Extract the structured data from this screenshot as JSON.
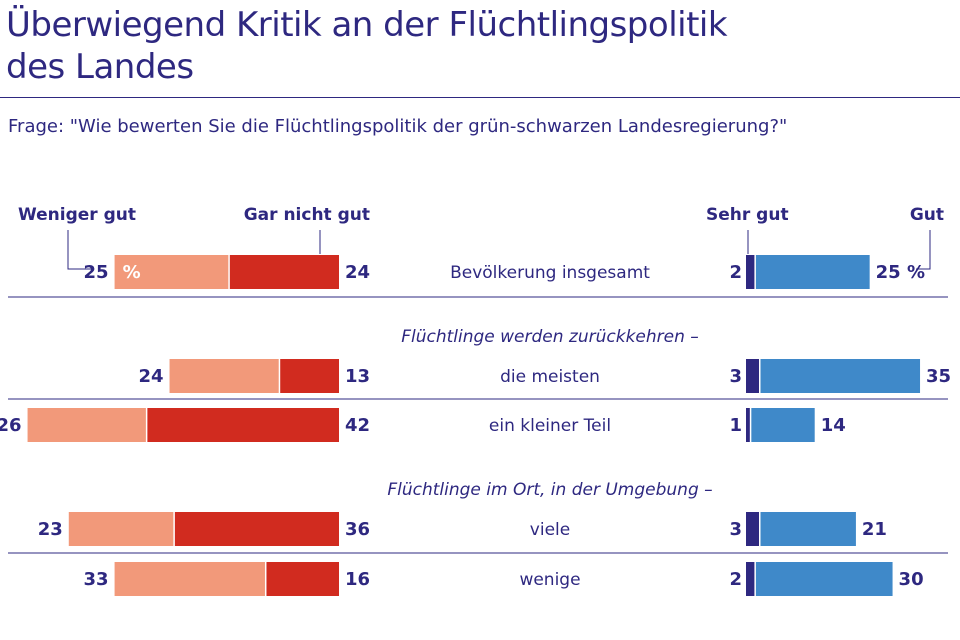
{
  "title_line1": "Überwiegend Kritik an der Flüchtlingspolitik",
  "title_line2": "des Landes",
  "question": "Frage:  \"Wie bewerten Sie die Flüchtlingspolitik der grün-schwarzen Landesregierung?\"",
  "colors": {
    "text": "#2e2880",
    "weniger_gut": "#f2997a",
    "gar_nicht_gut": "#d12b1f",
    "sehr_gut": "#2e2880",
    "gut": "#3f89c9",
    "rule": "#2e2880"
  },
  "chart_data": {
    "type": "bar",
    "orientation": "horizontal-diverging",
    "legend": {
      "weniger_gut": "Weniger gut",
      "gar_nicht_gut": "Gar nicht gut",
      "sehr_gut": "Sehr gut",
      "gut": "Gut"
    },
    "percent_sign": "%",
    "categories": [
      "Bevölkerung insgesamt",
      "die meisten",
      "ein kleiner Teil",
      "viele",
      "wenige"
    ],
    "group_labels": [
      {
        "before": 1,
        "label": "Flüchtlinge werden zurückkehren –"
      },
      {
        "before": 3,
        "label": "Flüchtlinge im Ort, in der Umgebung –"
      }
    ],
    "series": [
      {
        "name": "Weniger gut",
        "side": "negative",
        "values": [
          25,
          24,
          26,
          23,
          33
        ]
      },
      {
        "name": "Gar nicht gut",
        "side": "negative",
        "values": [
          24,
          13,
          42,
          36,
          16
        ]
      },
      {
        "name": "Sehr gut",
        "side": "positive",
        "values": [
          2,
          3,
          1,
          3,
          2
        ]
      },
      {
        "name": "Gut",
        "side": "positive",
        "values": [
          25,
          35,
          14,
          21,
          30
        ]
      }
    ],
    "unit": "%"
  }
}
